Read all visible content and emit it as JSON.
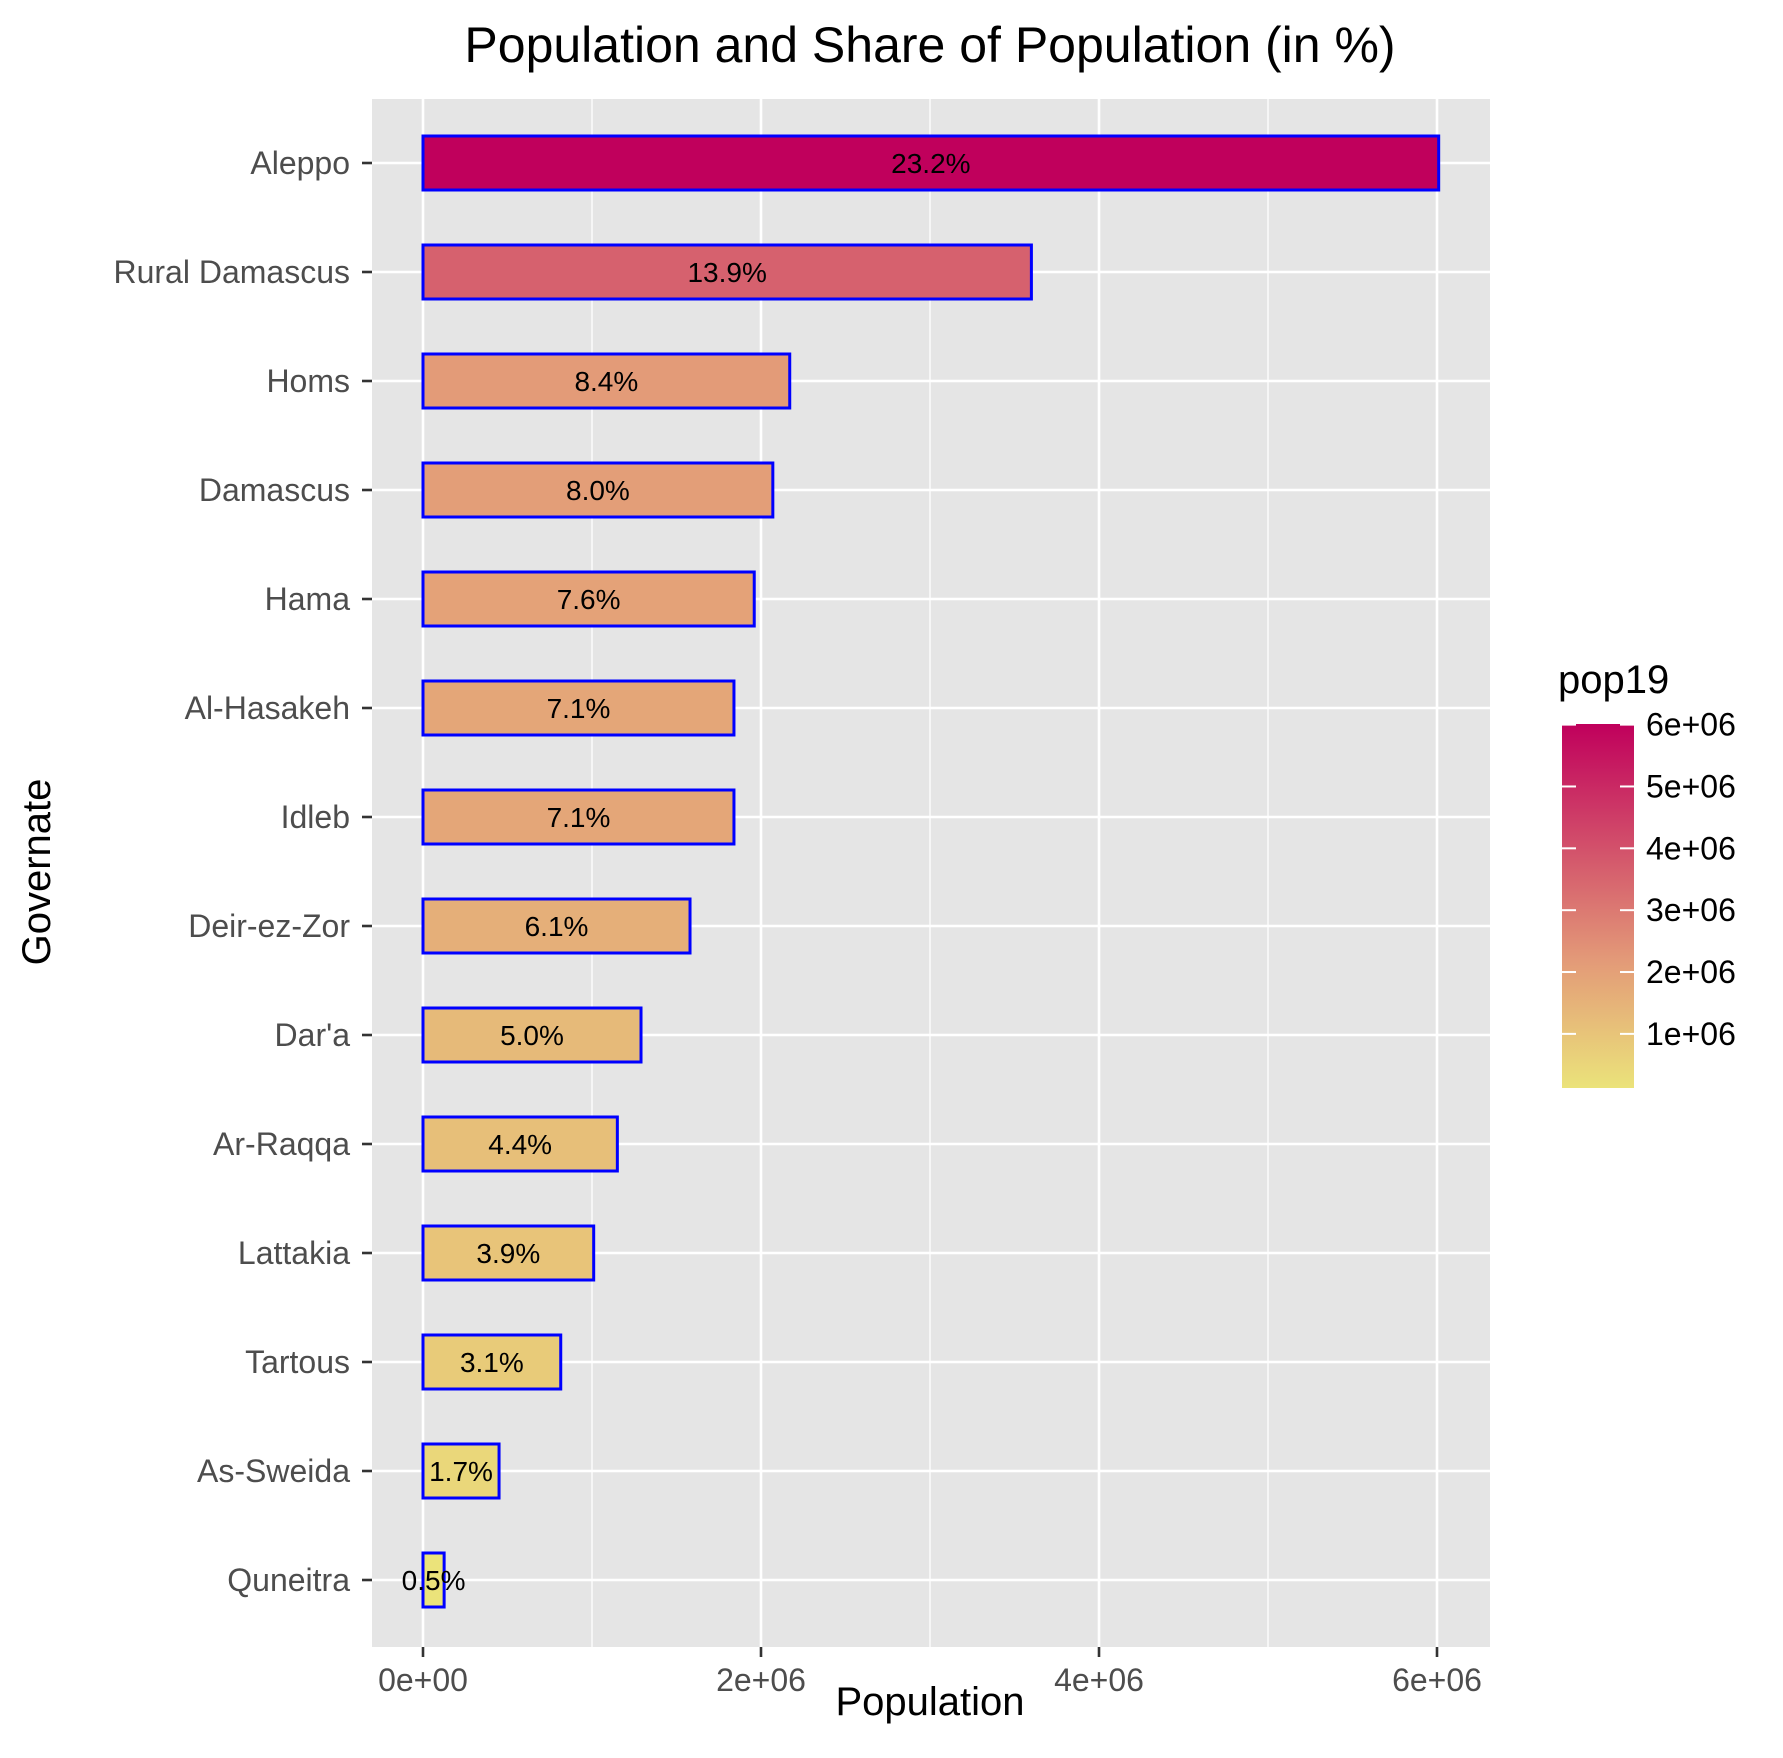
{
  "chart_data": {
    "type": "bar",
    "orientation": "horizontal",
    "title": "Population and Share of Population (in %)",
    "xlabel": "Population",
    "ylabel": "Governate",
    "xlim": [
      0,
      6000000
    ],
    "x_ticks": [
      0,
      2000000,
      4000000,
      6000000
    ],
    "x_tick_labels": [
      "0e+00",
      "2e+06",
      "4e+06",
      "6e+06"
    ],
    "grid": true,
    "bar_outline_color": "#0000ff",
    "categories": [
      "Aleppo",
      "Rural Damascus",
      "Homs",
      "Damascus",
      "Hama",
      "Al-Hasakeh",
      "Idleb",
      "Deir-ez-Zor",
      "Dar'a",
      "Ar-Raqqa",
      "Lattakia",
      "Tartous",
      "As-Sweida",
      "Quneitra"
    ],
    "values": [
      6010000,
      3600000,
      2170000,
      2070000,
      1960000,
      1840000,
      1840000,
      1580000,
      1290000,
      1150000,
      1010000,
      815000,
      450000,
      125000
    ],
    "labels": [
      "23.2%",
      "13.9%",
      "8.4%",
      "8.0%",
      "7.6%",
      "7.1%",
      "7.1%",
      "6.1%",
      "5.0%",
      "4.4%",
      "3.9%",
      "3.1%",
      "1.7%",
      "0.5%"
    ],
    "legend": {
      "title": "pop19",
      "position": "right",
      "range": [
        125000,
        6010000
      ],
      "ticks": [
        6000000,
        5000000,
        4000000,
        3000000,
        2000000,
        1000000
      ],
      "tick_labels": [
        "6e+06",
        "5e+06",
        "4e+06",
        "3e+06",
        "2e+06",
        "1e+06"
      ],
      "color_low": "#ebe37a",
      "color_mid": "#e39a78",
      "color_high": "#c0005c"
    }
  }
}
